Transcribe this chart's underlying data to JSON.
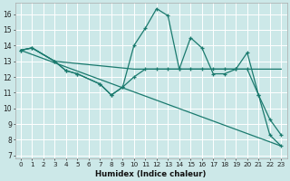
{
  "xlabel": "Humidex (Indice chaleur)",
  "background_color": "#cce8e8",
  "grid_color": "#ffffff",
  "line_color": "#1a7a6e",
  "xlim": [
    -0.5,
    23.5
  ],
  "ylim": [
    6.8,
    16.7
  ],
  "yticks": [
    7,
    8,
    9,
    10,
    11,
    12,
    13,
    14,
    15,
    16
  ],
  "xticks": [
    0,
    1,
    2,
    3,
    4,
    5,
    6,
    7,
    8,
    9,
    10,
    11,
    12,
    13,
    14,
    15,
    16,
    17,
    18,
    19,
    20,
    21,
    22,
    23
  ],
  "line1_x": [
    0,
    1,
    3,
    4,
    5,
    7,
    8,
    9,
    10,
    11,
    12,
    13,
    14,
    15,
    16,
    17,
    18,
    19,
    20,
    21,
    22,
    23
  ],
  "line1_y": [
    13.7,
    13.85,
    13.0,
    12.4,
    12.2,
    11.55,
    10.85,
    11.35,
    14.0,
    15.1,
    16.35,
    15.9,
    12.5,
    14.5,
    13.85,
    12.2,
    12.2,
    12.5,
    13.55,
    10.85,
    8.3,
    7.6
  ],
  "line2_x": [
    0,
    1,
    3,
    10,
    11,
    12,
    13,
    14,
    15,
    16,
    17,
    18,
    19,
    20,
    21,
    22,
    23
  ],
  "line2_y": [
    13.7,
    13.85,
    13.0,
    12.5,
    12.5,
    12.5,
    12.5,
    12.5,
    12.5,
    12.5,
    12.5,
    12.5,
    12.5,
    12.5,
    12.5,
    12.5,
    12.5
  ],
  "line3_x": [
    0,
    23
  ],
  "line3_y": [
    13.7,
    7.6
  ],
  "line4_x": [
    0,
    1,
    3,
    4,
    5,
    7,
    8,
    9,
    10,
    11,
    12,
    13,
    14,
    15,
    16,
    17,
    18,
    19,
    20,
    21,
    22,
    23
  ],
  "line4_y": [
    13.7,
    13.85,
    13.0,
    12.4,
    12.2,
    11.55,
    10.85,
    11.35,
    12.0,
    12.5,
    12.5,
    12.5,
    12.5,
    12.5,
    12.5,
    12.5,
    12.5,
    12.5,
    12.5,
    10.85,
    9.3,
    8.3
  ]
}
